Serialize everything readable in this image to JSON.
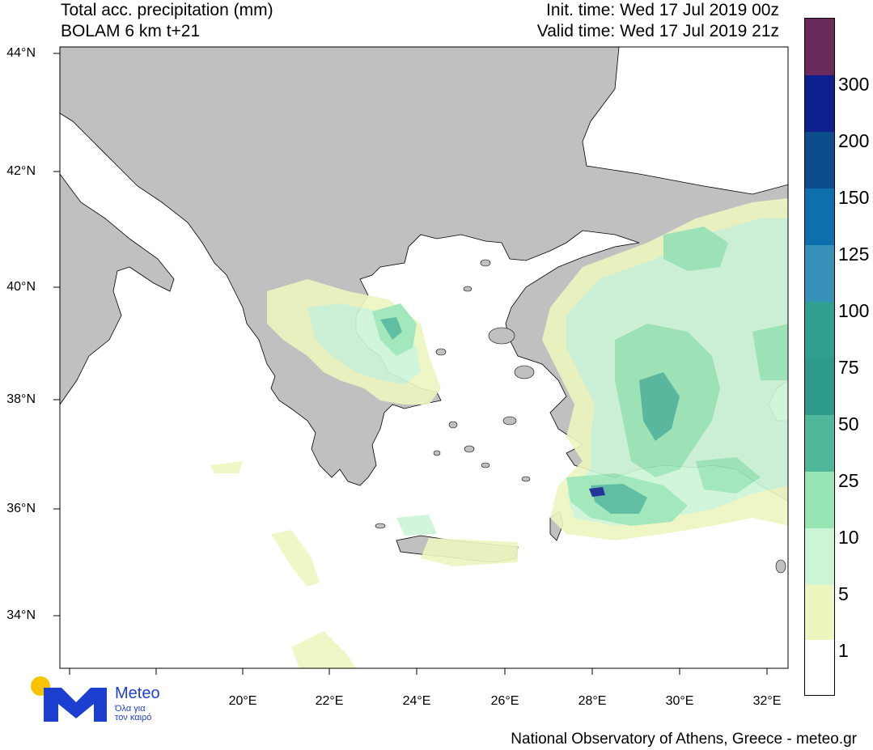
{
  "header": {
    "title_line1": "Total acc. precipitation (mm)",
    "title_line2": "BOLAM 6 km t+21",
    "init_time": "Init. time: Wed 17 Jul 2019 00z",
    "valid_time": "Valid time: Wed 17 Jul 2019 21z"
  },
  "axes": {
    "lat_labels": [
      "44°N",
      "42°N",
      "40°N",
      "38°N",
      "36°N",
      "34°N"
    ],
    "lon_labels": [
      "20°E",
      "22°E",
      "24°E",
      "26°E",
      "28°E",
      "30°E",
      "32°E"
    ]
  },
  "legend": {
    "labels": [
      "300",
      "200",
      "150",
      "125",
      "100",
      "75",
      "50",
      "25",
      "10",
      "5",
      "1"
    ],
    "colors": [
      "#6a2a5c",
      "#0e1f8e",
      "#0c4d8c",
      "#0d6fae",
      "#3690b8",
      "#2fa08f",
      "#2e9a8a",
      "#4fb79a",
      "#99e6b5",
      "#ccf5d8",
      "#eef6c0",
      "#ffffff"
    ]
  },
  "logo": {
    "word": "Meteo",
    "tagline1": "Όλα για",
    "tagline2": "τον καιρό"
  },
  "credit": "National Observatory of Athens, Greece - meteo.gr",
  "colors": {
    "land": "#c0c0c0",
    "sea": "#ffffff",
    "accent": "#1d3fd0",
    "sun": "#f7c500"
  }
}
